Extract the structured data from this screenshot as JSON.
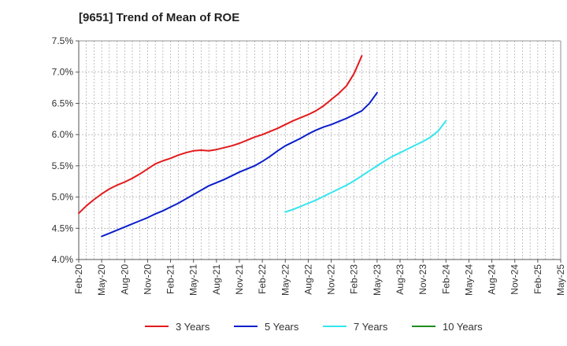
{
  "chart_data": {
    "type": "line",
    "title": "[9651]  Trend of Mean of ROE",
    "xlabel": "",
    "ylabel": "",
    "ylim": [
      4.0,
      7.5
    ],
    "yticks": [
      "4.0%",
      "4.5%",
      "5.0%",
      "5.5%",
      "6.0%",
      "6.5%",
      "7.0%",
      "7.5%"
    ],
    "yticks_values": [
      4.0,
      4.5,
      5.0,
      5.5,
      6.0,
      6.5,
      7.0,
      7.5
    ],
    "xticks": [
      "Feb-20",
      "May-20",
      "Aug-20",
      "Nov-20",
      "Feb-21",
      "May-21",
      "Aug-21",
      "Nov-21",
      "Feb-22",
      "May-22",
      "Aug-22",
      "Nov-22",
      "Feb-23",
      "May-23",
      "Aug-23",
      "Nov-23",
      "Feb-24",
      "May-24",
      "Aug-24",
      "Nov-24",
      "Feb-25",
      "May-25"
    ],
    "grid": true,
    "legend_position": "bottom",
    "series": [
      {
        "name": "3 Years",
        "color": "#e31a1c",
        "start_index": 0,
        "values": [
          4.74,
          4.86,
          4.96,
          5.05,
          5.13,
          5.19,
          5.24,
          5.3,
          5.37,
          5.45,
          5.53,
          5.58,
          5.62,
          5.67,
          5.71,
          5.74,
          5.75,
          5.74,
          5.76,
          5.79,
          5.82,
          5.86,
          5.91,
          5.96,
          6.0,
          6.05,
          6.1,
          6.16,
          6.22,
          6.27,
          6.32,
          6.38,
          6.46,
          6.56,
          6.66,
          6.78,
          6.98,
          7.26
        ]
      },
      {
        "name": "5 Years",
        "color": "#0a1ecc",
        "start_index": 3,
        "values": [
          4.37,
          4.42,
          4.47,
          4.52,
          4.57,
          4.62,
          4.67,
          4.73,
          4.78,
          4.84,
          4.9,
          4.97,
          5.04,
          5.11,
          5.18,
          5.23,
          5.28,
          5.34,
          5.4,
          5.45,
          5.5,
          5.57,
          5.65,
          5.74,
          5.82,
          5.88,
          5.94,
          6.01,
          6.07,
          6.12,
          6.16,
          6.21,
          6.26,
          6.32,
          6.38,
          6.5,
          6.67
        ]
      },
      {
        "name": "7 Years",
        "color": "#33e6ee",
        "start_index": 27,
        "values": [
          4.76,
          4.8,
          4.85,
          4.9,
          4.95,
          5.01,
          5.07,
          5.13,
          5.19,
          5.26,
          5.34,
          5.42,
          5.5,
          5.58,
          5.65,
          5.71,
          5.77,
          5.83,
          5.89,
          5.96,
          6.06,
          6.22
        ]
      },
      {
        "name": "10 Years",
        "color": "#1f8a1f",
        "start_index": 0,
        "values": []
      }
    ]
  }
}
